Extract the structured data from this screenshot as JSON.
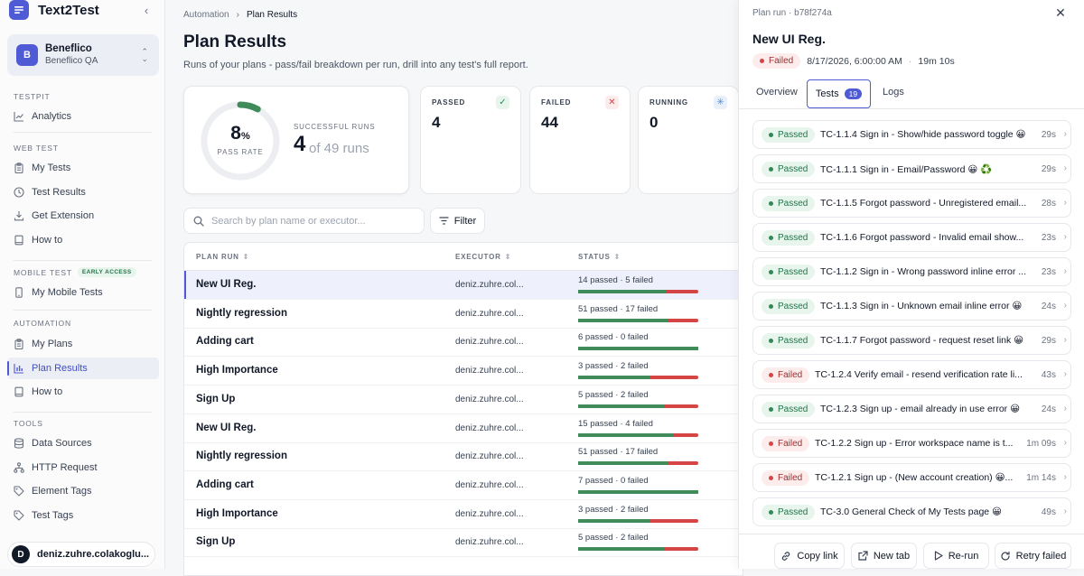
{
  "app": {
    "name": "Text2Test"
  },
  "workspace": {
    "initial": "B",
    "name": "Beneflico",
    "subtitle": "Beneflico QA"
  },
  "sidebar": {
    "sections": [
      {
        "title": "TESTPIT",
        "items": [
          {
            "label": "Analytics",
            "icon": "chart-line-icon"
          }
        ]
      },
      {
        "title": "WEB TEST",
        "items": [
          {
            "label": "My Tests",
            "icon": "clipboard-icon"
          },
          {
            "label": "Test Results",
            "icon": "clock-icon"
          },
          {
            "label": "Get Extension",
            "icon": "download-icon"
          },
          {
            "label": "How to",
            "icon": "book-icon"
          }
        ]
      },
      {
        "title": "MOBILE TEST",
        "badge": "EARLY ACCESS",
        "items": [
          {
            "label": "My Mobile Tests",
            "icon": "phone-icon"
          }
        ]
      },
      {
        "title": "AUTOMATION",
        "items": [
          {
            "label": "My Plans",
            "icon": "clipboard-icon"
          },
          {
            "label": "Plan Results",
            "icon": "bar-chart-icon",
            "active": true
          },
          {
            "label": "How to",
            "icon": "book-icon"
          }
        ]
      },
      {
        "title": "TOOLS",
        "items": [
          {
            "label": "Data Sources",
            "icon": "database-icon"
          },
          {
            "label": "HTTP Request",
            "icon": "network-icon"
          },
          {
            "label": "Element Tags",
            "icon": "tag-icon"
          },
          {
            "label": "Test Tags",
            "icon": "tag-icon"
          }
        ]
      }
    ]
  },
  "user": {
    "initial": "D",
    "name": "deniz.zuhre.colakoglu..."
  },
  "main": {
    "breadcrumb": [
      "Automation",
      "Plan Results"
    ],
    "title": "Plan Results",
    "subtitle": "Runs of your plans - pass/fail breakdown per run, drill into any test's full report.",
    "summary": {
      "pass_rate_value": "8",
      "pass_rate_unit": "%",
      "pass_rate_fraction": 0.08,
      "pass_rate_label": "PASS RATE",
      "successful_label": "SUCCESSFUL RUNS",
      "successful_count": "4",
      "successful_of": "of 49 runs"
    },
    "stats": [
      {
        "label": "PASSED",
        "value": "4",
        "icon": "check-icon",
        "color": "#2f8a55",
        "bg": "#e7f5ec"
      },
      {
        "label": "FAILED",
        "value": "44",
        "icon": "x-icon",
        "color": "#d64545",
        "bg": "#fdecec"
      },
      {
        "label": "RUNNING",
        "value": "0",
        "icon": "spinner-icon",
        "color": "#4f8fd5",
        "bg": "#e8f0fb"
      }
    ],
    "search_placeholder": "Search by plan name or executor...",
    "filter_label": "Filter",
    "table": {
      "columns": [
        "PLAN RUN",
        "EXECUTOR",
        "STATUS"
      ],
      "rows": [
        {
          "plan": "New UI Reg.",
          "executor": "deniz.zuhre.col...",
          "status": "14 passed · 5 failed",
          "passed": 14,
          "failed": 5,
          "selected": true
        },
        {
          "plan": "Nightly regression",
          "executor": "deniz.zuhre.col...",
          "status": "51 passed · 17 failed",
          "passed": 51,
          "failed": 17
        },
        {
          "plan": "Adding cart",
          "executor": "deniz.zuhre.col...",
          "status": "6 passed · 0 failed",
          "passed": 6,
          "failed": 0
        },
        {
          "plan": "High Importance",
          "executor": "deniz.zuhre.col...",
          "status": "3 passed · 2 failed",
          "passed": 3,
          "failed": 2
        },
        {
          "plan": "Sign Up",
          "executor": "deniz.zuhre.col...",
          "status": "5 passed · 2 failed",
          "passed": 5,
          "failed": 2
        },
        {
          "plan": "New UI Reg.",
          "executor": "deniz.zuhre.col...",
          "status": "15 passed · 4 failed",
          "passed": 15,
          "failed": 4
        },
        {
          "plan": "Nightly regression",
          "executor": "deniz.zuhre.col...",
          "status": "51 passed · 17 failed",
          "passed": 51,
          "failed": 17
        },
        {
          "plan": "Adding cart",
          "executor": "deniz.zuhre.col...",
          "status": "7 passed · 0 failed",
          "passed": 7,
          "failed": 0
        },
        {
          "plan": "High Importance",
          "executor": "deniz.zuhre.col...",
          "status": "3 passed · 2 failed",
          "passed": 3,
          "failed": 2
        },
        {
          "plan": "Sign Up",
          "executor": "deniz.zuhre.col...",
          "status": "5 passed · 2 failed",
          "passed": 5,
          "failed": 2
        }
      ]
    }
  },
  "panel": {
    "run_id": "Plan run · b78f274a",
    "title": "New UI Reg.",
    "status": "Failed",
    "datetime": "8/17/2026, 6:00:00 AM",
    "separator": "·",
    "duration": "19m 10s",
    "tabs": {
      "overview": "Overview",
      "tests": "Tests",
      "tests_count": "19",
      "logs": "Logs"
    },
    "tests": [
      {
        "status": "Passed",
        "name": "TC-1.1.4 Sign in - Show/hide password toggle 😀",
        "duration": "29s"
      },
      {
        "status": "Passed",
        "name": "TC-1.1.1 Sign in - Email/Password 😀 ♻️",
        "duration": "29s"
      },
      {
        "status": "Passed",
        "name": "TC-1.1.5 Forgot password - Unregistered email...",
        "duration": "28s"
      },
      {
        "status": "Passed",
        "name": "TC-1.1.6 Forgot password - Invalid email show...",
        "duration": "23s"
      },
      {
        "status": "Passed",
        "name": "TC-1.1.2 Sign in - Wrong password inline error ...",
        "duration": "23s"
      },
      {
        "status": "Passed",
        "name": "TC-1.1.3 Sign in - Unknown email inline error 😀",
        "duration": "24s"
      },
      {
        "status": "Passed",
        "name": "TC-1.1.7 Forgot password - request reset link 😀",
        "duration": "29s"
      },
      {
        "status": "Failed",
        "name": "TC-1.2.4 Verify email - resend verification rate li...",
        "duration": "43s"
      },
      {
        "status": "Passed",
        "name": "TC-1.2.3 Sign up - email already in use error 😀",
        "duration": "24s"
      },
      {
        "status": "Failed",
        "name": "TC-1.2.2 Sign up - Error workspace name is t...",
        "duration": "1m 09s"
      },
      {
        "status": "Failed",
        "name": "TC-1.2.1 Sign up - (New account creation) 😀...",
        "duration": "1m 14s"
      },
      {
        "status": "Passed",
        "name": "TC-3.0 General Check of My Tests page 😀",
        "duration": "49s"
      }
    ],
    "footer": {
      "copy_link": "Copy link",
      "new_tab": "New tab",
      "rerun": "Re-run",
      "retry_failed": "Retry failed"
    }
  }
}
